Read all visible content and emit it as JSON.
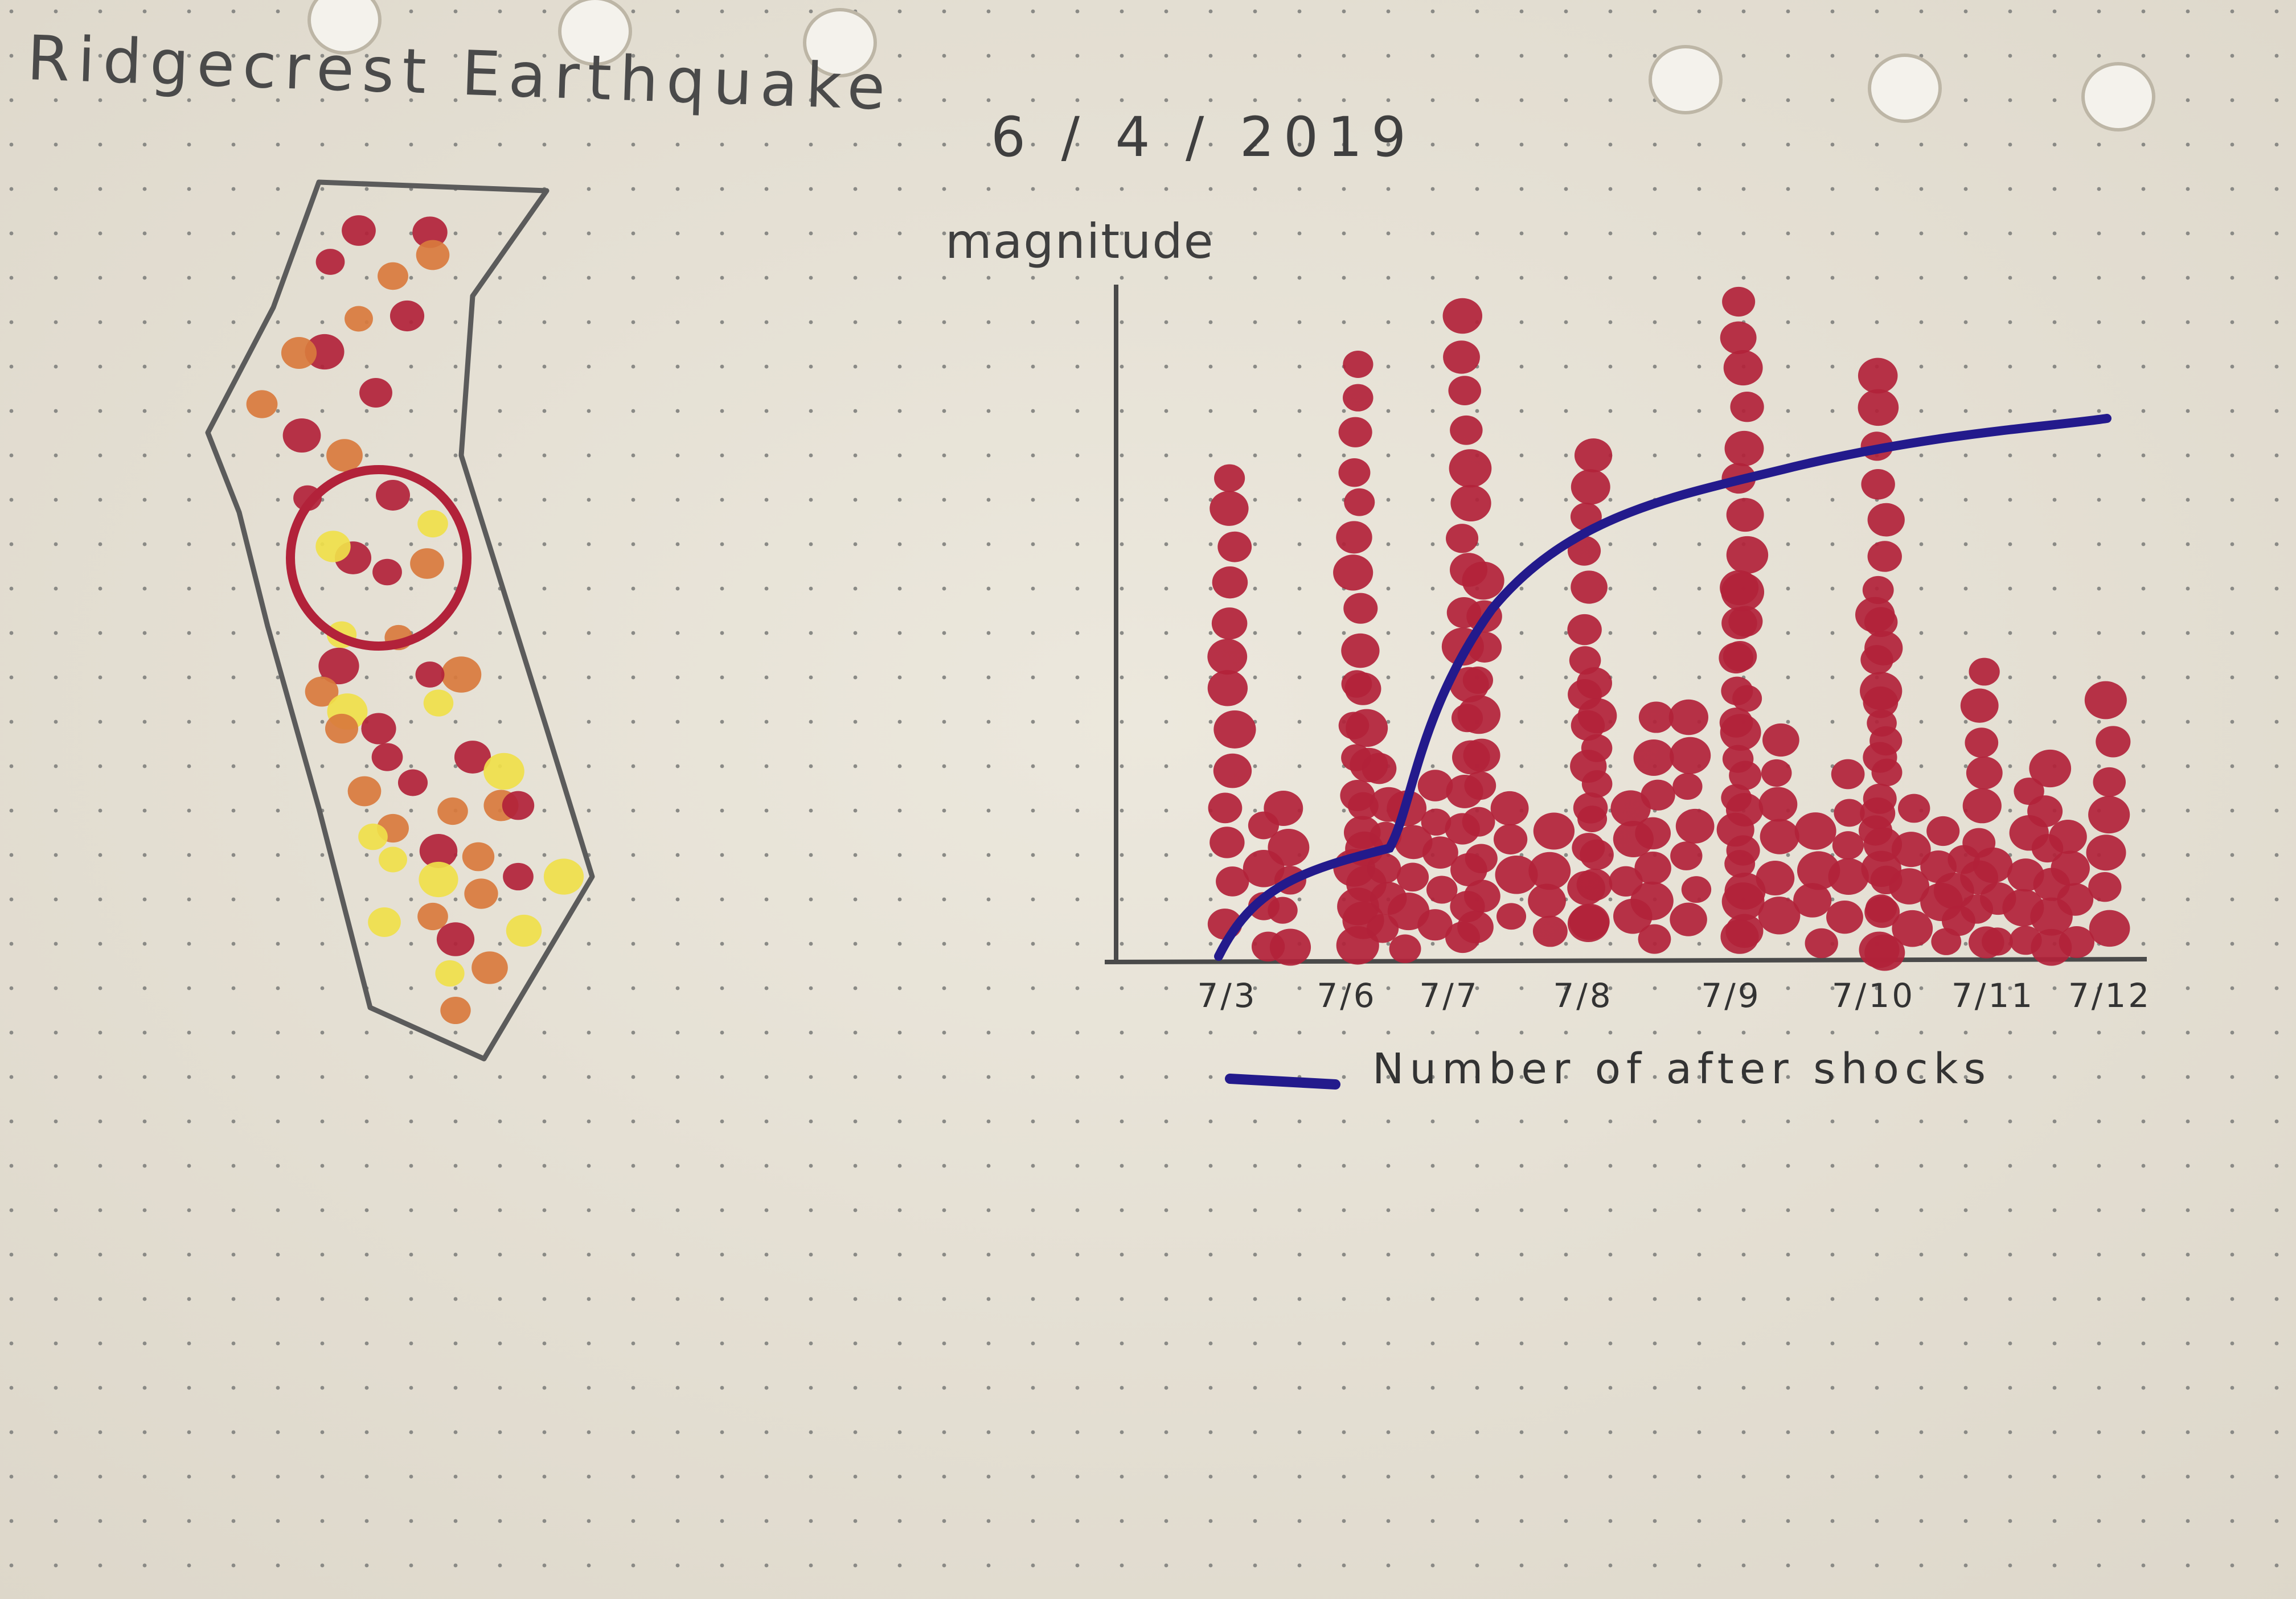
{
  "sketch": {
    "title": "Ridgecrest Earthquake",
    "date": "6 / 4 / 2019",
    "colors": {
      "paper": "#e9e4d8",
      "dots": "#8a8a86",
      "pencil": "#555555",
      "marker_red": "#b2223a",
      "marker_orange": "#d9793d",
      "marker_yellow": "#f0df4a",
      "marker_blue": "#231a8c"
    },
    "map": {
      "style": "hand-drawn outline with colored dots; epicenter circled in red"
    }
  },
  "chart_data": {
    "type": "scatter",
    "ylabel": "magnitude",
    "xlabel": "",
    "categories": [
      "7/3",
      "7/6",
      "7/7",
      "7/8",
      "7/9",
      "7/10",
      "7/11",
      "7/12"
    ],
    "legend": [
      {
        "name": "Number of after shocks",
        "color": "#231a8c"
      }
    ],
    "legend_placement": "bottom",
    "grid": false
  }
}
